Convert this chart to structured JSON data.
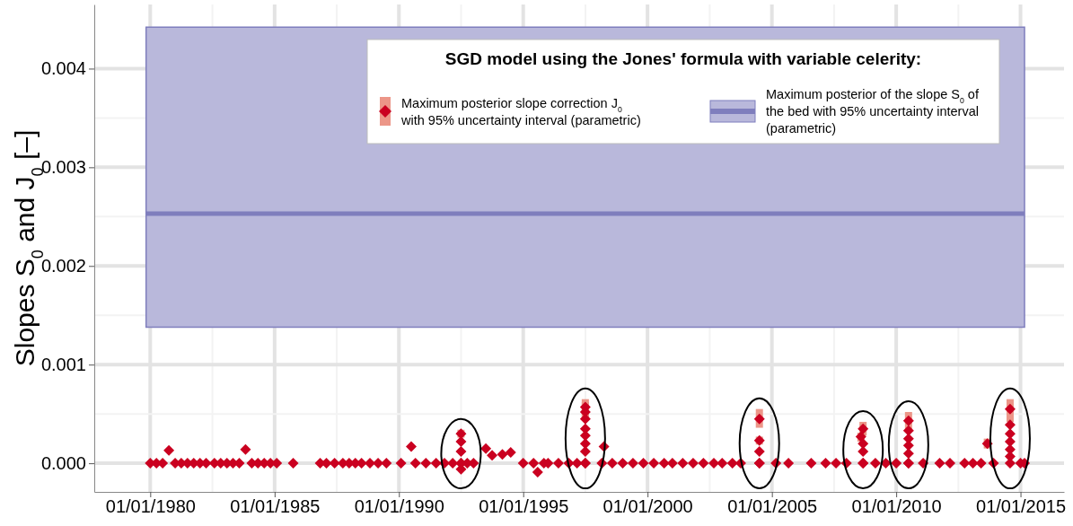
{
  "chart_data": {
    "type": "scatter",
    "ylabel": "Slopes S$_{0}$ and J$_{0}$ [–]",
    "legend_title": "SGD model using the Jones' formula with variable celerity:",
    "legend": "top right",
    "grid": true,
    "xlim": [
      "1977-10",
      "2016-10"
    ],
    "xticks": [
      {
        "value": "1980-01-01",
        "label": "01/01/1980"
      },
      {
        "value": "1985-01-01",
        "label": "01/01/1985"
      },
      {
        "value": "1990-01-01",
        "label": "01/01/1990"
      },
      {
        "value": "1995-01-01",
        "label": "01/01/1995"
      },
      {
        "value": "2000-01-01",
        "label": "01/01/2000"
      },
      {
        "value": "2005-01-01",
        "label": "01/01/2005"
      },
      {
        "value": "2010-01-01",
        "label": "01/01/2010"
      },
      {
        "value": "2015-01-01",
        "label": "01/01/2015"
      }
    ],
    "ylim": [
      -0.00029,
      0.00465
    ],
    "yticks": [
      {
        "value": 0,
        "label": "0.000"
      },
      {
        "value": 0.001,
        "label": "0.001"
      },
      {
        "value": 0.002,
        "label": "0.002"
      },
      {
        "value": 0.003,
        "label": "0.003"
      },
      {
        "value": 0.004,
        "label": "0.004"
      }
    ],
    "series": [
      {
        "name": "Maximum posterior slope correction J$_{0}$ with 95% uncertainty interval (parametric)",
        "color": "#ca0020",
        "marker": "diamond",
        "x": [
          "1980-01",
          "1980-04",
          "1980-07",
          "1980-10",
          "1981-01",
          "1981-04",
          "1981-07",
          "1981-10",
          "1982-01",
          "1982-04",
          "1982-08",
          "1982-11",
          "1983-02",
          "1983-05",
          "1983-08",
          "1983-11",
          "1984-02",
          "1984-05",
          "1984-08",
          "1984-11",
          "1985-02",
          "1985-10",
          "1986-11",
          "1987-02",
          "1987-06",
          "1987-10",
          "1988-01",
          "1988-04",
          "1988-07",
          "1988-11",
          "1989-03",
          "1989-07",
          "1990-02",
          "1990-07",
          "1990-09",
          "1991-02",
          "1991-07",
          "1991-11",
          "1992-03",
          "1992-07",
          "1992-07",
          "1992-07",
          "1992-07",
          "1992-07",
          "1992-07",
          "1992-10",
          "1993-01",
          "1993-07",
          "1993-10",
          "1994-03",
          "1994-07",
          "1995-01",
          "1995-06",
          "1995-08",
          "1995-11",
          "1996-01",
          "1996-06",
          "1996-11",
          "1997-03",
          "1997-07",
          "1997-07",
          "1997-07",
          "1997-07",
          "1997-07",
          "1997-07",
          "1997-07",
          "1997-07",
          "1997-07",
          "1998-04",
          "1998-03",
          "1998-08",
          "1999-01",
          "1999-06",
          "1999-11",
          "2000-04",
          "2000-09",
          "2001-01",
          "2001-06",
          "2001-11",
          "2002-04",
          "2002-09",
          "2003-01",
          "2003-06",
          "2003-10",
          "2004-07",
          "2004-07",
          "2004-07",
          "2004-07",
          "2004-07",
          "2005-03",
          "2005-09",
          "2006-08",
          "2007-03",
          "2007-08",
          "2008-01",
          "2008-09",
          "2008-08",
          "2008-09",
          "2008-09",
          "2008-09",
          "2008-09",
          "2009-03",
          "2009-08",
          "2010-01",
          "2010-07",
          "2010-07",
          "2010-07",
          "2010-07",
          "2010-07",
          "2010-07",
          "2010-07",
          "2011-02",
          "2011-10",
          "2012-03",
          "2012-10",
          "2013-02",
          "2013-06",
          "2013-09",
          "2013-12",
          "2014-08",
          "2014-08",
          "2014-08",
          "2014-08",
          "2014-08",
          "2014-08",
          "2014-08",
          "2015-01",
          "2015-03"
        ],
        "values": [
          0,
          0,
          0,
          0.00013,
          0,
          0,
          0,
          0,
          0,
          0,
          0,
          0,
          0,
          0,
          0,
          0.00014,
          0,
          0,
          0,
          0,
          0,
          0,
          0,
          0,
          0,
          0,
          0,
          0,
          0,
          0,
          0,
          0,
          0,
          0.00017,
          0,
          0,
          0,
          0,
          0,
          0.0003,
          0.00022,
          0.00012,
          0,
          0,
          -6e-05,
          0,
          0,
          0.00015,
          8e-05,
          9e-05,
          0.00011,
          0,
          0,
          -9e-05,
          0,
          0,
          0,
          0,
          0,
          0.00057,
          0.00052,
          0.00045,
          0.00035,
          0.00028,
          0.0002,
          0.00012,
          0,
          0,
          0.00017,
          0,
          0,
          0,
          0,
          0,
          0,
          0,
          0,
          0,
          0,
          0,
          0,
          0,
          0,
          0,
          0.00045,
          0.00023,
          0.00012,
          0,
          0,
          0,
          0,
          0,
          0,
          0,
          0,
          0.00035,
          0.00027,
          0.0002,
          0.00012,
          0,
          0,
          0,
          0,
          0,
          0.00043,
          0.00033,
          0.00025,
          0.00018,
          0.0001,
          0,
          0,
          0,
          0,
          0,
          0,
          0,
          0,
          0.0002,
          0,
          0.00055,
          0.00039,
          0.0003,
          0.00022,
          0.00014,
          7e-05,
          0,
          0,
          0
        ],
        "errors": [
          null,
          null,
          null,
          null,
          null,
          null,
          null,
          null,
          null,
          null,
          null,
          null,
          null,
          null,
          null,
          null,
          null,
          null,
          null,
          null,
          null,
          null,
          null,
          null,
          null,
          null,
          null,
          null,
          null,
          null,
          null,
          null,
          null,
          null,
          null,
          null,
          null,
          null,
          null,
          [
            0.00026,
            0.00034
          ],
          null,
          null,
          null,
          null,
          null,
          null,
          null,
          null,
          null,
          null,
          null,
          null,
          null,
          null,
          null,
          null,
          null,
          null,
          null,
          [
            0.00045,
            0.00065
          ],
          [
            0.00045,
            0.00062
          ],
          null,
          null,
          null,
          null,
          null,
          null,
          null,
          null,
          null,
          null,
          null,
          null,
          null,
          null,
          null,
          null,
          null,
          null,
          null,
          null,
          null,
          null,
          null,
          [
            0.00036,
            0.00055
          ],
          [
            0.00019,
            0.00027
          ],
          null,
          null,
          null,
          null,
          null,
          null,
          null,
          null,
          null,
          [
            0.00028,
            0.00042
          ],
          [
            0.00022,
            0.00031
          ],
          null,
          null,
          null,
          null,
          null,
          null,
          null,
          [
            0.00034,
            0.00052
          ],
          null,
          null,
          null,
          null,
          null,
          null,
          null,
          null,
          null,
          null,
          null,
          null,
          [
            0.00015,
            0.00025
          ],
          null,
          [
            0.00042,
            0.00065
          ],
          null,
          null,
          null,
          null,
          null,
          null,
          null,
          null
        ]
      },
      {
        "name": "Maximum posterior of the slope S$_{0}$ of the bed with 95% uncertainty interval (parametric)",
        "type": "line",
        "color": "#7f7ebd",
        "x": [
          "1979-11",
          "2015-03"
        ],
        "values": [
          0.00253,
          0.00253
        ],
        "lower": [
          0.00138,
          0.00138
        ],
        "upper": [
          0.00442,
          0.00442
        ]
      }
    ]
  }
}
